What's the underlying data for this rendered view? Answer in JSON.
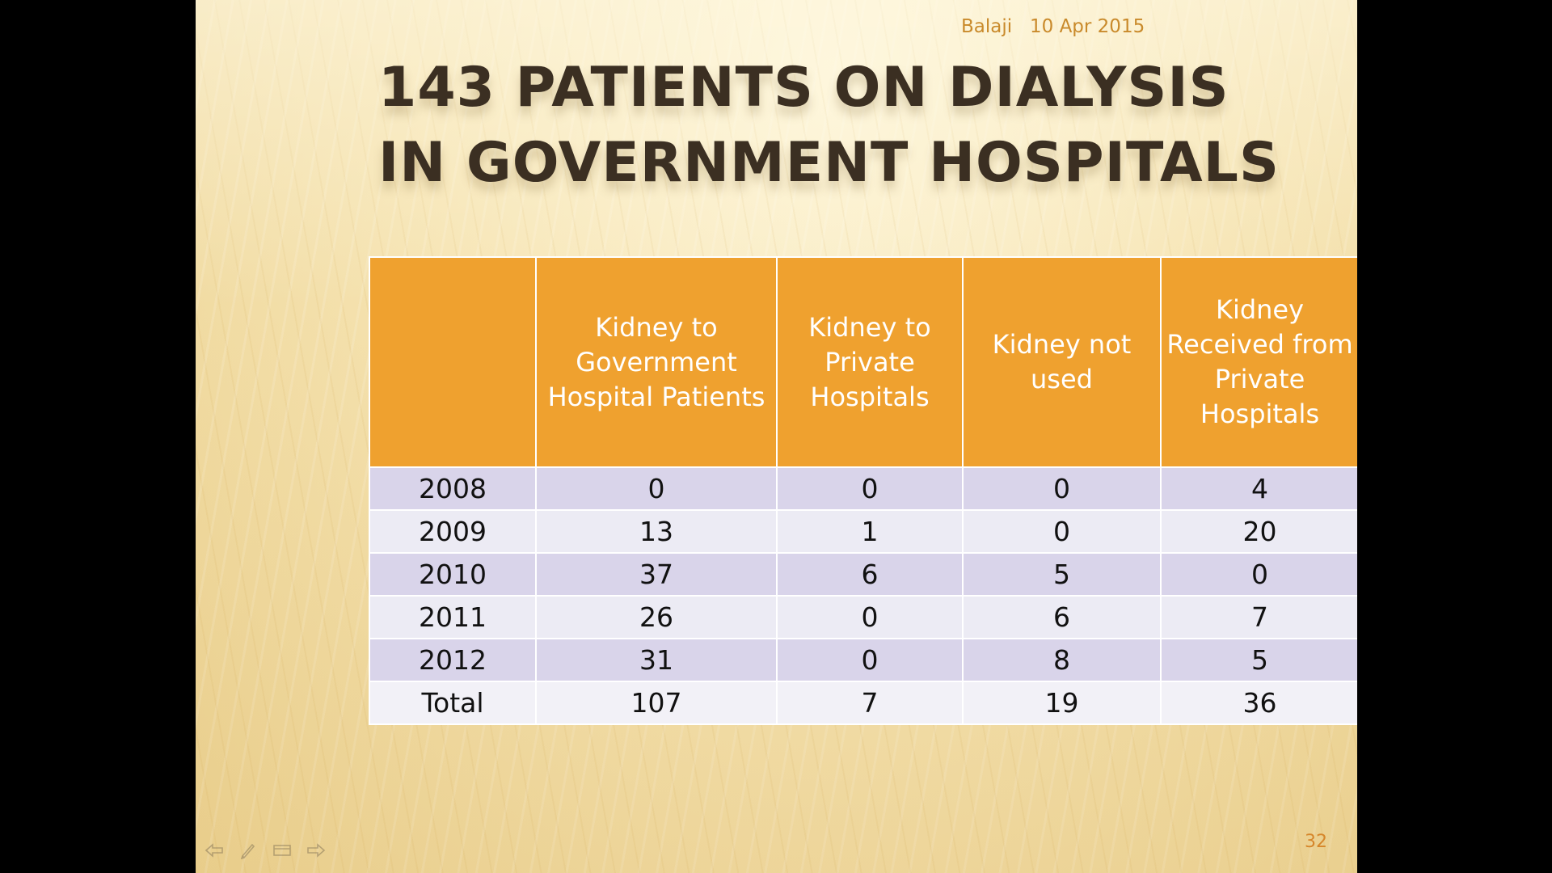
{
  "slide": {
    "header": {
      "author": "Balaji",
      "date": "10 Apr 2015"
    },
    "title": "143 Patients on dialysis in Government Hospitals",
    "page_number": "32",
    "nav_icons": [
      "previous-arrow-icon",
      "pen-icon",
      "slide-menu-icon",
      "next-arrow-icon"
    ],
    "colors": {
      "header_fill": "#efa12f",
      "row_fill_dark": "#d9d4ea",
      "row_fill_light": "#ecebf4",
      "title_text": "#3b2f22",
      "accent_text": "#c98a2b"
    }
  },
  "table": {
    "columns": [
      "",
      "Kidney to Government Hospital Patients",
      "Kidney to Private Hospitals",
      "Kidney not used",
      "Kidney Received from Private Hospitals"
    ],
    "rows": [
      [
        "2008",
        "0",
        "0",
        "0",
        "4"
      ],
      [
        "2009",
        "13",
        "1",
        "0",
        "20"
      ],
      [
        "2010",
        "37",
        "6",
        "5",
        "0"
      ],
      [
        "2011",
        "26",
        "0",
        "6",
        "7"
      ],
      [
        "2012",
        "31",
        "0",
        "8",
        "5"
      ],
      [
        "Total",
        "107",
        "7",
        "19",
        "36"
      ]
    ]
  }
}
